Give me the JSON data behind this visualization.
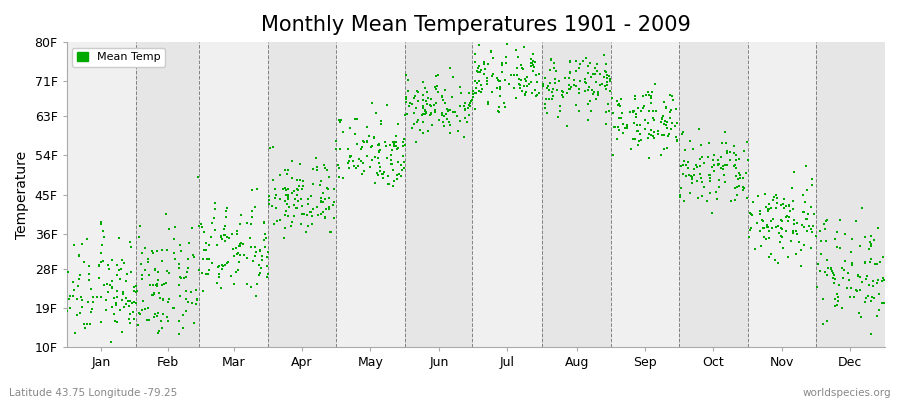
{
  "title": "Monthly Mean Temperatures 1901 - 2009",
  "ylabel": "Temperature",
  "yticks_labels": [
    "10F",
    "19F",
    "28F",
    "36F",
    "45F",
    "54F",
    "63F",
    "71F",
    "80F"
  ],
  "yticks_values": [
    10,
    19,
    28,
    36,
    45,
    54,
    63,
    71,
    80
  ],
  "months": [
    "Jan",
    "Feb",
    "Mar",
    "Apr",
    "May",
    "Jun",
    "Jul",
    "Aug",
    "Sep",
    "Oct",
    "Nov",
    "Dec"
  ],
  "month_means_f": [
    23.0,
    23.5,
    32.0,
    44.0,
    55.0,
    65.5,
    71.5,
    70.0,
    62.0,
    50.0,
    39.0,
    27.5
  ],
  "month_stds_f": [
    6.0,
    6.5,
    5.5,
    4.5,
    4.5,
    3.5,
    3.0,
    3.5,
    3.5,
    4.5,
    5.0,
    6.5
  ],
  "n_years": 109,
  "dot_color": "#00AA00",
  "dot_size": 2.5,
  "bg_white": "#ffffff",
  "stripe_color_odd": "#f0f0f0",
  "stripe_color_even": "#e6e6e6",
  "grid_color": "#555555",
  "title_fontsize": 15,
  "axis_label_fontsize": 10,
  "tick_fontsize": 9,
  "subtitle_left": "Latitude 43.75 Longitude -79.25",
  "subtitle_right": "worldspecies.org",
  "legend_label": "Mean Temp",
  "month_days": [
    31,
    28,
    31,
    30,
    31,
    30,
    31,
    31,
    30,
    31,
    30,
    31
  ]
}
